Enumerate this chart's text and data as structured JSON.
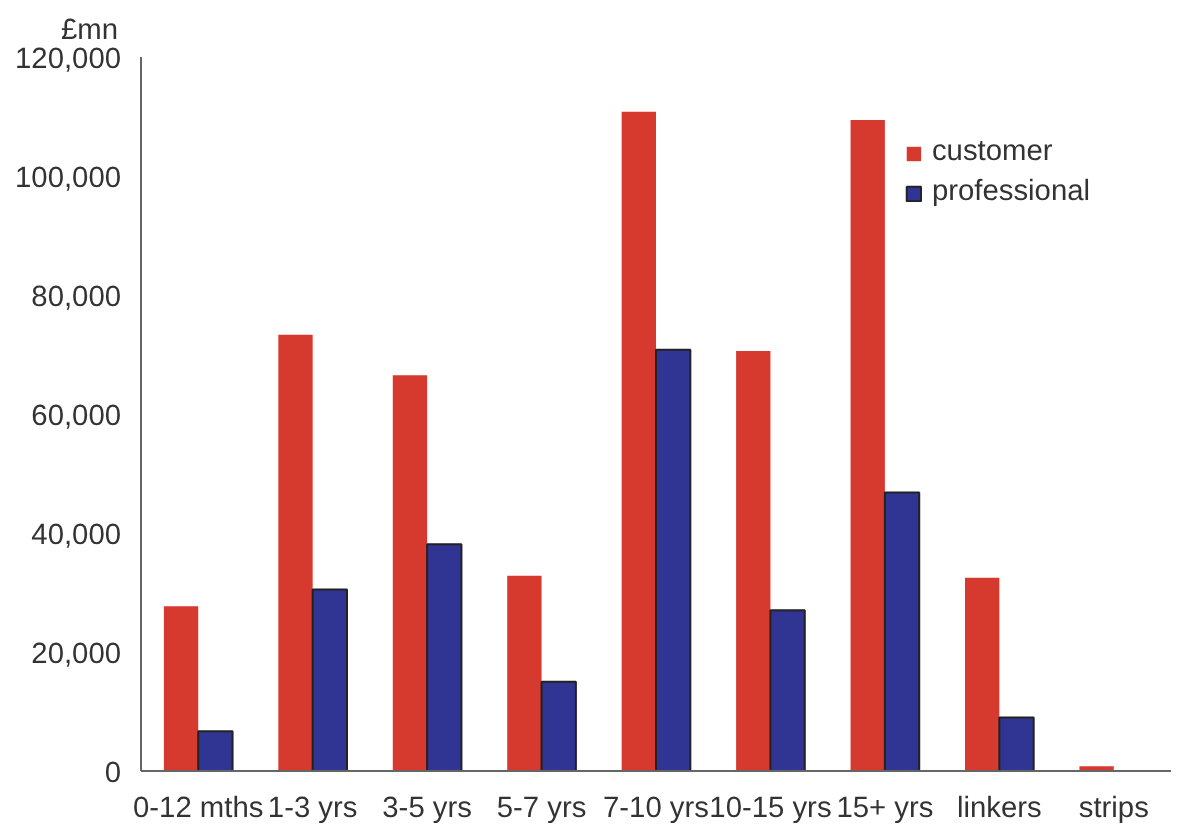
{
  "chart_data": {
    "type": "bar",
    "ylabel": "£mn",
    "categories": [
      "0-12 mths",
      "1-3 yrs",
      "3-5 yrs",
      "5-7 yrs",
      "7-10 yrs",
      "10-15 yrs",
      "15+ yrs",
      "linkers",
      "strips"
    ],
    "series": [
      {
        "name": "customer",
        "color": "#d63a2f",
        "values": [
          27700,
          73300,
          66500,
          32800,
          110800,
          70600,
          109400,
          32500,
          800
        ]
      },
      {
        "name": "professional",
        "color": "#303593",
        "values": [
          6700,
          30500,
          38100,
          15000,
          70800,
          27000,
          46800,
          9000,
          null
        ]
      }
    ],
    "ylim": [
      0,
      120000
    ],
    "yticks": [
      0,
      {
        "value": 20000,
        "label": "20,000"
      },
      {
        "value": 40000,
        "label": "40,000"
      },
      {
        "value": 60000,
        "label": "60,000"
      },
      {
        "value": 80000,
        "label": "80,000"
      },
      {
        "value": 100000,
        "label": "100,000"
      },
      {
        "value": 120000,
        "label": "120,000"
      }
    ],
    "grid": false,
    "legend": "top right"
  }
}
